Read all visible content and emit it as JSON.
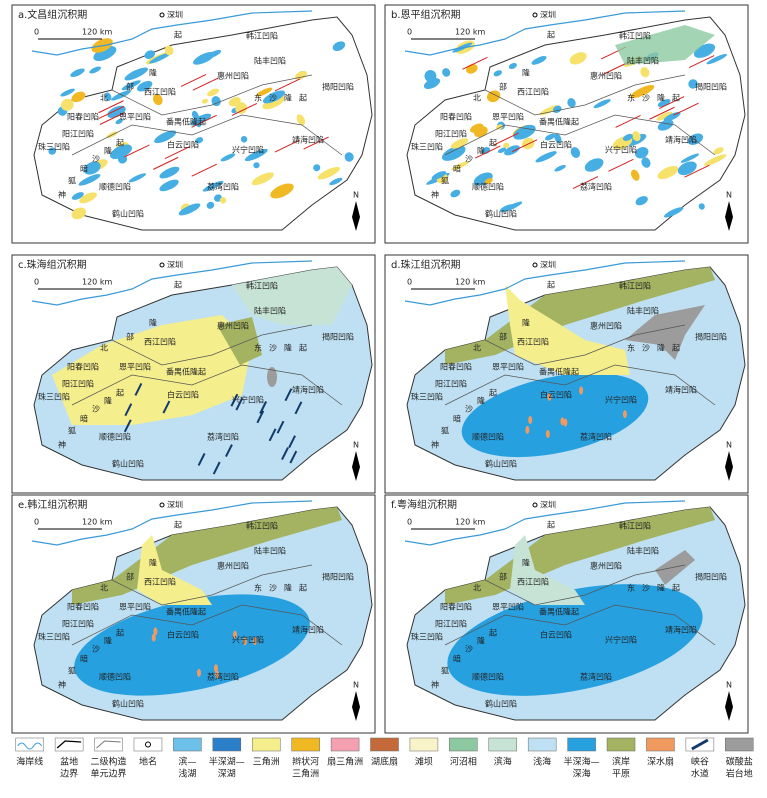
{
  "common": {
    "city": "深圳",
    "scale_start": "0",
    "scale_end": "120 km",
    "north": "N",
    "place_names": [
      "韩江凹陷",
      "陆丰凹陷",
      "惠州凹陷",
      "西江凹陷",
      "起",
      "隆",
      "部",
      "北",
      "东",
      "沙",
      "隆",
      "起",
      "揭阳凹陷",
      "阳春凹陷",
      "恩平凹陷",
      "番禺低隆起",
      "阳江凹陷",
      "白云凹陷",
      "靖海凹陷",
      "兴宁凹陷",
      "珠三凹陷",
      "顺德凹陷",
      "荔湾凹陷",
      "鹤山凹陷",
      "神",
      "狐",
      "暗",
      "沙",
      "隆",
      "起"
    ]
  },
  "panels": [
    {
      "title": "a.文昌组沉积期"
    },
    {
      "title": "b.恩平组沉积期"
    },
    {
      "title": "c.珠海组沉积期"
    },
    {
      "title": "d.珠江组沉积期"
    },
    {
      "title": "e.韩江组沉积期"
    },
    {
      "title": "f.粤海组沉积期"
    }
  ],
  "legend": [
    {
      "label": [
        "海岸线"
      ]
    },
    {
      "label": [
        "盆地",
        "边界"
      ]
    },
    {
      "label": [
        "二级构造",
        "单元边界"
      ]
    },
    {
      "label": [
        "地名"
      ]
    },
    {
      "label": [
        "滨—",
        "浅湖"
      ],
      "color": "#6cc0ea"
    },
    {
      "label": [
        "半深湖—",
        "深湖"
      ],
      "color": "#2b7fc8"
    },
    {
      "label": [
        "三角洲"
      ],
      "color": "#f5ee8c"
    },
    {
      "label": [
        "辫状河",
        "三角洲"
      ],
      "color": "#f0b822"
    },
    {
      "label": [
        "扇三角洲"
      ],
      "color": "#f3a0b0"
    },
    {
      "label": [
        "湖底扇"
      ],
      "color": "#c46a3a"
    },
    {
      "label": [
        "滩坝"
      ],
      "color": "#f8f3c8"
    },
    {
      "label": [
        "河沼相"
      ],
      "color": "#8cc9a0"
    },
    {
      "label": [
        "滨海"
      ],
      "color": "#c6e3d6"
    },
    {
      "label": [
        "浅海"
      ],
      "color": "#bfe0f2"
    },
    {
      "label": [
        "半深海—",
        "深海"
      ],
      "color": "#27a0e0"
    },
    {
      "label": [
        "滨岸",
        "平原"
      ],
      "color": "#a4b361"
    },
    {
      "label": [
        "深水扇"
      ],
      "color": "#f09a60"
    },
    {
      "label": [
        "峡谷",
        "水道"
      ]
    },
    {
      "label": [
        "碳酸盐",
        "岩台地"
      ],
      "color": "#9c9c9c"
    }
  ]
}
